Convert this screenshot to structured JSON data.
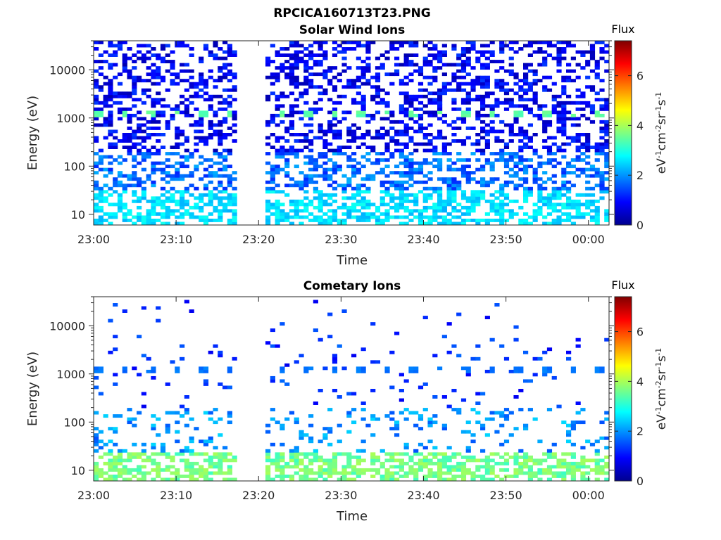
{
  "figure": {
    "title": "RPCICA160713T23.PNG"
  },
  "colorbar": {
    "label_title": "Flux",
    "unit_base": "eV",
    "unit_parts": [
      {
        "t": "eV",
        "sup": false
      },
      {
        "t": "-1",
        "sup": true
      },
      {
        "t": "cm",
        "sup": false
      },
      {
        "t": "-2",
        "sup": true
      },
      {
        "t": "sr",
        "sup": false
      },
      {
        "t": "-1",
        "sup": true
      },
      {
        "t": "s",
        "sup": false
      },
      {
        "t": "-1",
        "sup": true
      }
    ],
    "range": [
      0,
      7.4
    ],
    "ticks": [
      "0",
      "2",
      "4",
      "6"
    ],
    "tick_values": [
      0,
      2,
      4,
      6
    ],
    "colormap": "jet"
  },
  "chart_data": [
    {
      "type": "heatmap",
      "title": "Solar Wind Ions",
      "xlabel": "Time",
      "ylabel": "Energy (eV)",
      "x_tick_labels": [
        "23:00",
        "23:10",
        "23:20",
        "23:30",
        "23:40",
        "23:50",
        "00:00"
      ],
      "x_tick_minutes": [
        0,
        10,
        20,
        30,
        40,
        50,
        60
      ],
      "xlim_minutes": [
        0,
        62.5
      ],
      "y_scale": "log",
      "y_tick_labels": [
        "10",
        "100",
        "1000",
        "10000"
      ],
      "y_tick_values": [
        10,
        100,
        1000,
        10000
      ],
      "ylim": [
        6,
        40000
      ],
      "data_gap_minutes": [
        17.8,
        20.8
      ],
      "dominant_flux_ranges": [
        {
          "energy_ev": [
            6,
            30
          ],
          "flux": [
            2.2,
            3.0
          ]
        },
        {
          "energy_ev": [
            30,
            200
          ],
          "flux": [
            1.2,
            2.2
          ]
        },
        {
          "energy_ev": [
            200,
            40000
          ],
          "flux": [
            0.4,
            1.4
          ]
        }
      ],
      "periodic_features": [
        {
          "energy_ev": 1200,
          "flux": 3.3,
          "period_minutes": 3.2
        }
      ]
    },
    {
      "type": "heatmap",
      "title": "Cometary Ions",
      "xlabel": "Time",
      "ylabel": "Energy (eV)",
      "x_tick_labels": [
        "23:00",
        "23:10",
        "23:20",
        "23:30",
        "23:40",
        "23:50",
        "00:00"
      ],
      "x_tick_minutes": [
        0,
        10,
        20,
        30,
        40,
        50,
        60
      ],
      "xlim_minutes": [
        0,
        62.5
      ],
      "y_scale": "log",
      "y_tick_labels": [
        "10",
        "100",
        "1000",
        "10000"
      ],
      "y_tick_values": [
        10,
        100,
        1000,
        10000
      ],
      "ylim": [
        6,
        40000
      ],
      "data_gap_minutes": [
        17.8,
        20.8
      ],
      "dominant_flux_ranges": [
        {
          "energy_ev": [
            6,
            22
          ],
          "flux": [
            3.2,
            4.0
          ]
        },
        {
          "energy_ev": [
            22,
            200
          ],
          "flux": [
            1.5,
            2.5
          ]
        },
        {
          "energy_ev": [
            200,
            40000
          ],
          "flux": [
            0.8,
            1.6
          ]
        }
      ],
      "periodic_features": [
        {
          "energy_ev": 10,
          "flux": 3.7,
          "period_minutes": 3.2
        },
        {
          "energy_ev": 1200,
          "flux": 1.6,
          "period_minutes": 3.2
        }
      ]
    }
  ]
}
